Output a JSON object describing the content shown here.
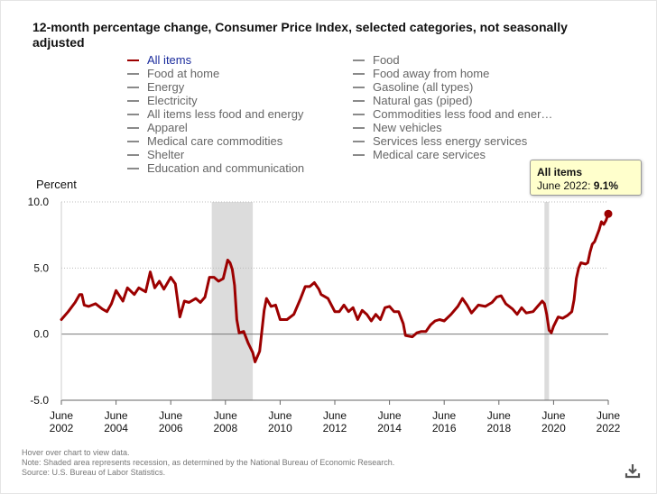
{
  "chart_data": {
    "type": "line",
    "title": "12-month percentage change, Consumer Price Index, selected categories, not seasonally adjusted",
    "ylabel": "Percent",
    "ylim": [
      -5.0,
      10.0
    ],
    "yticks": [
      "10.0",
      "5.0",
      "0.0",
      "-5.0"
    ],
    "x_ticks": [
      {
        "month": "June",
        "year": "2002"
      },
      {
        "month": "June",
        "year": "2004"
      },
      {
        "month": "June",
        "year": "2006"
      },
      {
        "month": "June",
        "year": "2008"
      },
      {
        "month": "June",
        "year": "2010"
      },
      {
        "month": "June",
        "year": "2012"
      },
      {
        "month": "June",
        "year": "2014"
      },
      {
        "month": "June",
        "year": "2016"
      },
      {
        "month": "June",
        "year": "2018"
      },
      {
        "month": "June",
        "year": "2020"
      },
      {
        "month": "June",
        "year": "2022"
      }
    ],
    "xlim": [
      "2002-06",
      "2022-06"
    ],
    "grid": true,
    "recessions": [
      [
        "2007-12",
        "2009-06"
      ],
      [
        "2020-02",
        "2020-04"
      ]
    ],
    "series": [
      {
        "name": "All items",
        "color": "#9c0000",
        "points": [
          [
            "2002-06",
            1.1
          ],
          [
            "2002-09",
            1.7
          ],
          [
            "2002-12",
            2.4
          ],
          [
            "2003-02",
            3.0
          ],
          [
            "2003-03",
            3.0
          ],
          [
            "2003-04",
            2.2
          ],
          [
            "2003-06",
            2.1
          ],
          [
            "2003-09",
            2.3
          ],
          [
            "2003-12",
            1.9
          ],
          [
            "2004-02",
            1.7
          ],
          [
            "2004-04",
            2.3
          ],
          [
            "2004-06",
            3.3
          ],
          [
            "2004-09",
            2.5
          ],
          [
            "2004-11",
            3.5
          ],
          [
            "2005-02",
            3.0
          ],
          [
            "2005-04",
            3.5
          ],
          [
            "2005-07",
            3.2
          ],
          [
            "2005-09",
            4.7
          ],
          [
            "2005-11",
            3.5
          ],
          [
            "2006-01",
            4.0
          ],
          [
            "2006-03",
            3.4
          ],
          [
            "2006-06",
            4.3
          ],
          [
            "2006-08",
            3.8
          ],
          [
            "2006-10",
            1.3
          ],
          [
            "2006-12",
            2.5
          ],
          [
            "2007-02",
            2.4
          ],
          [
            "2007-05",
            2.7
          ],
          [
            "2007-07",
            2.4
          ],
          [
            "2007-09",
            2.8
          ],
          [
            "2007-11",
            4.3
          ],
          [
            "2008-01",
            4.3
          ],
          [
            "2008-03",
            4.0
          ],
          [
            "2008-05",
            4.2
          ],
          [
            "2008-07",
            5.6
          ],
          [
            "2008-08",
            5.4
          ],
          [
            "2008-09",
            4.9
          ],
          [
            "2008-10",
            3.7
          ],
          [
            "2008-11",
            1.1
          ],
          [
            "2008-12",
            0.1
          ],
          [
            "2009-02",
            0.2
          ],
          [
            "2009-04",
            -0.7
          ],
          [
            "2009-06",
            -1.4
          ],
          [
            "2009-07",
            -2.1
          ],
          [
            "2009-09",
            -1.3
          ],
          [
            "2009-11",
            1.8
          ],
          [
            "2009-12",
            2.7
          ],
          [
            "2010-02",
            2.1
          ],
          [
            "2010-04",
            2.2
          ],
          [
            "2010-06",
            1.1
          ],
          [
            "2010-09",
            1.1
          ],
          [
            "2010-12",
            1.5
          ],
          [
            "2011-03",
            2.7
          ],
          [
            "2011-05",
            3.6
          ],
          [
            "2011-07",
            3.6
          ],
          [
            "2011-09",
            3.9
          ],
          [
            "2011-11",
            3.4
          ],
          [
            "2011-12",
            3.0
          ],
          [
            "2012-03",
            2.7
          ],
          [
            "2012-06",
            1.7
          ],
          [
            "2012-08",
            1.7
          ],
          [
            "2012-10",
            2.2
          ],
          [
            "2012-12",
            1.7
          ],
          [
            "2013-02",
            2.0
          ],
          [
            "2013-04",
            1.1
          ],
          [
            "2013-06",
            1.8
          ],
          [
            "2013-08",
            1.5
          ],
          [
            "2013-10",
            1.0
          ],
          [
            "2013-12",
            1.5
          ],
          [
            "2014-02",
            1.1
          ],
          [
            "2014-04",
            2.0
          ],
          [
            "2014-06",
            2.1
          ],
          [
            "2014-08",
            1.7
          ],
          [
            "2014-10",
            1.7
          ],
          [
            "2014-12",
            0.8
          ],
          [
            "2015-01",
            -0.1
          ],
          [
            "2015-04",
            -0.2
          ],
          [
            "2015-06",
            0.1
          ],
          [
            "2015-08",
            0.2
          ],
          [
            "2015-10",
            0.2
          ],
          [
            "2015-12",
            0.7
          ],
          [
            "2016-02",
            1.0
          ],
          [
            "2016-04",
            1.1
          ],
          [
            "2016-06",
            1.0
          ],
          [
            "2016-09",
            1.5
          ],
          [
            "2016-12",
            2.1
          ],
          [
            "2017-02",
            2.7
          ],
          [
            "2017-04",
            2.2
          ],
          [
            "2017-06",
            1.6
          ],
          [
            "2017-09",
            2.2
          ],
          [
            "2017-12",
            2.1
          ],
          [
            "2018-03",
            2.4
          ],
          [
            "2018-05",
            2.8
          ],
          [
            "2018-07",
            2.9
          ],
          [
            "2018-09",
            2.3
          ],
          [
            "2018-12",
            1.9
          ],
          [
            "2019-02",
            1.5
          ],
          [
            "2019-04",
            2.0
          ],
          [
            "2019-06",
            1.6
          ],
          [
            "2019-09",
            1.7
          ],
          [
            "2019-11",
            2.1
          ],
          [
            "2019-12",
            2.3
          ],
          [
            "2020-01",
            2.5
          ],
          [
            "2020-02",
            2.3
          ],
          [
            "2020-03",
            1.5
          ],
          [
            "2020-04",
            0.3
          ],
          [
            "2020-05",
            0.1
          ],
          [
            "2020-06",
            0.6
          ],
          [
            "2020-08",
            1.3
          ],
          [
            "2020-10",
            1.2
          ],
          [
            "2020-12",
            1.4
          ],
          [
            "2021-02",
            1.7
          ],
          [
            "2021-03",
            2.6
          ],
          [
            "2021-04",
            4.2
          ],
          [
            "2021-05",
            5.0
          ],
          [
            "2021-06",
            5.4
          ],
          [
            "2021-08",
            5.3
          ],
          [
            "2021-09",
            5.4
          ],
          [
            "2021-10",
            6.2
          ],
          [
            "2021-11",
            6.8
          ],
          [
            "2021-12",
            7.0
          ],
          [
            "2022-02",
            7.9
          ],
          [
            "2022-03",
            8.5
          ],
          [
            "2022-04",
            8.3
          ],
          [
            "2022-05",
            8.6
          ],
          [
            "2022-06",
            9.1
          ]
        ]
      }
    ],
    "legend": [
      {
        "label": "All items",
        "active": true
      },
      {
        "label": "Food",
        "active": false
      },
      {
        "label": "Food at home",
        "active": false
      },
      {
        "label": "Food away from home",
        "active": false
      },
      {
        "label": "Energy",
        "active": false
      },
      {
        "label": "Gasoline (all types)",
        "active": false
      },
      {
        "label": "Electricity",
        "active": false
      },
      {
        "label": "Natural gas (piped)",
        "active": false
      },
      {
        "label": "All items less food and energy",
        "active": false
      },
      {
        "label": "Commodities less food and ener…",
        "active": false
      },
      {
        "label": "Apparel",
        "active": false
      },
      {
        "label": "New vehicles",
        "active": false
      },
      {
        "label": "Medical care commodities",
        "active": false
      },
      {
        "label": "Services less energy services",
        "active": false
      },
      {
        "label": "Shelter",
        "active": false
      },
      {
        "label": "Medical care services",
        "active": false
      },
      {
        "label": "Education and communication",
        "active": false
      }
    ],
    "legend_placement": "top",
    "tooltip": {
      "series": "All items",
      "date": "June 2022",
      "value": "9.1%"
    }
  },
  "notes": [
    "Hover over chart to view data.",
    "Note: Shaded area represents recession, as determined by the National Bureau of Economic Research.",
    "Source: U.S. Bureau of Labor Statistics."
  ],
  "colors": {
    "series": "#9c0000",
    "recession": "#dcdcdc",
    "legend_active": "#1a2b9c",
    "tooltip_bg": "#ffffcc"
  },
  "icons": {
    "download": "download-icon"
  }
}
